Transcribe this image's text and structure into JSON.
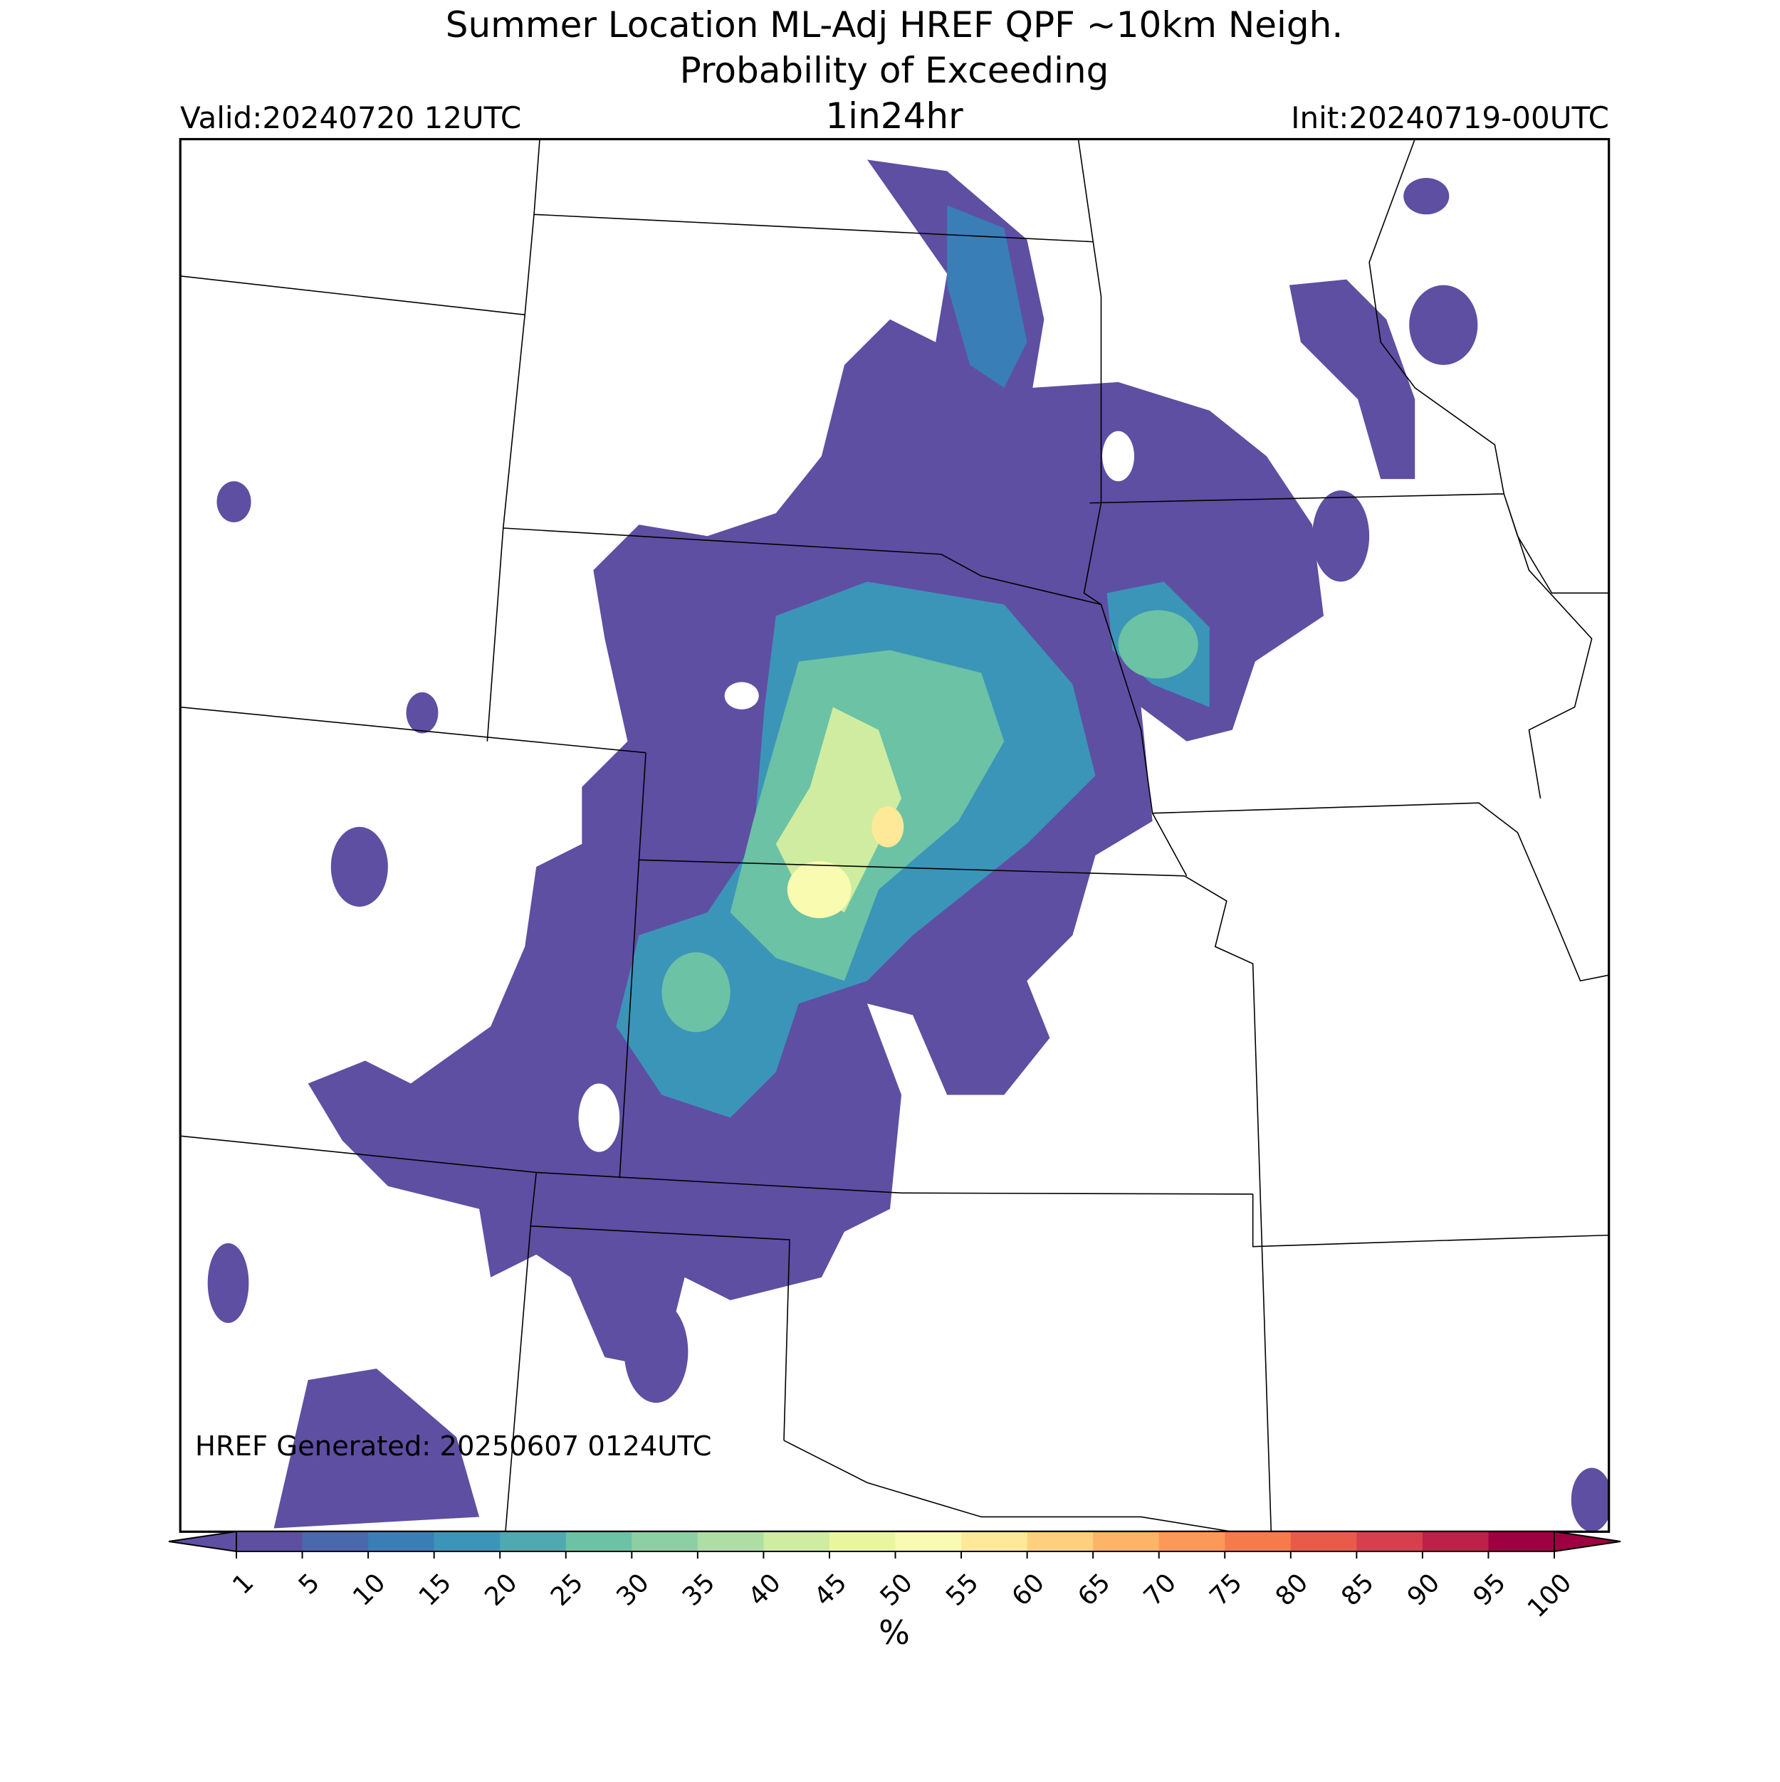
{
  "title": {
    "line1": "Summer Location ML-Adj HREF QPF ~10km Neigh.",
    "line2": "Probability of Exceeding",
    "threshold": "1in24hr"
  },
  "valid": "Valid:20240720 12UTC",
  "init": "Init:20240719-00UTC",
  "generated": "HREF Generated: 20250607 0124UTC",
  "colorbar": {
    "label": "%",
    "ticks": [
      1,
      5,
      10,
      15,
      20,
      25,
      30,
      35,
      40,
      45,
      50,
      55,
      60,
      65,
      70,
      75,
      80,
      85,
      90,
      95,
      100
    ],
    "colors": [
      "#5e4fa2",
      "#4a68ae",
      "#3a7eb8",
      "#3b95b8",
      "#4eaab0",
      "#6bc2a5",
      "#8ccfa4",
      "#aedea3",
      "#cfeca0",
      "#e9f69d",
      "#f8fbb0",
      "#fee999",
      "#fed07e",
      "#fdb466",
      "#fb9a58",
      "#f57b4a",
      "#e85b48",
      "#d6404e",
      "#bb2149",
      "#9e0142"
    ]
  }
}
